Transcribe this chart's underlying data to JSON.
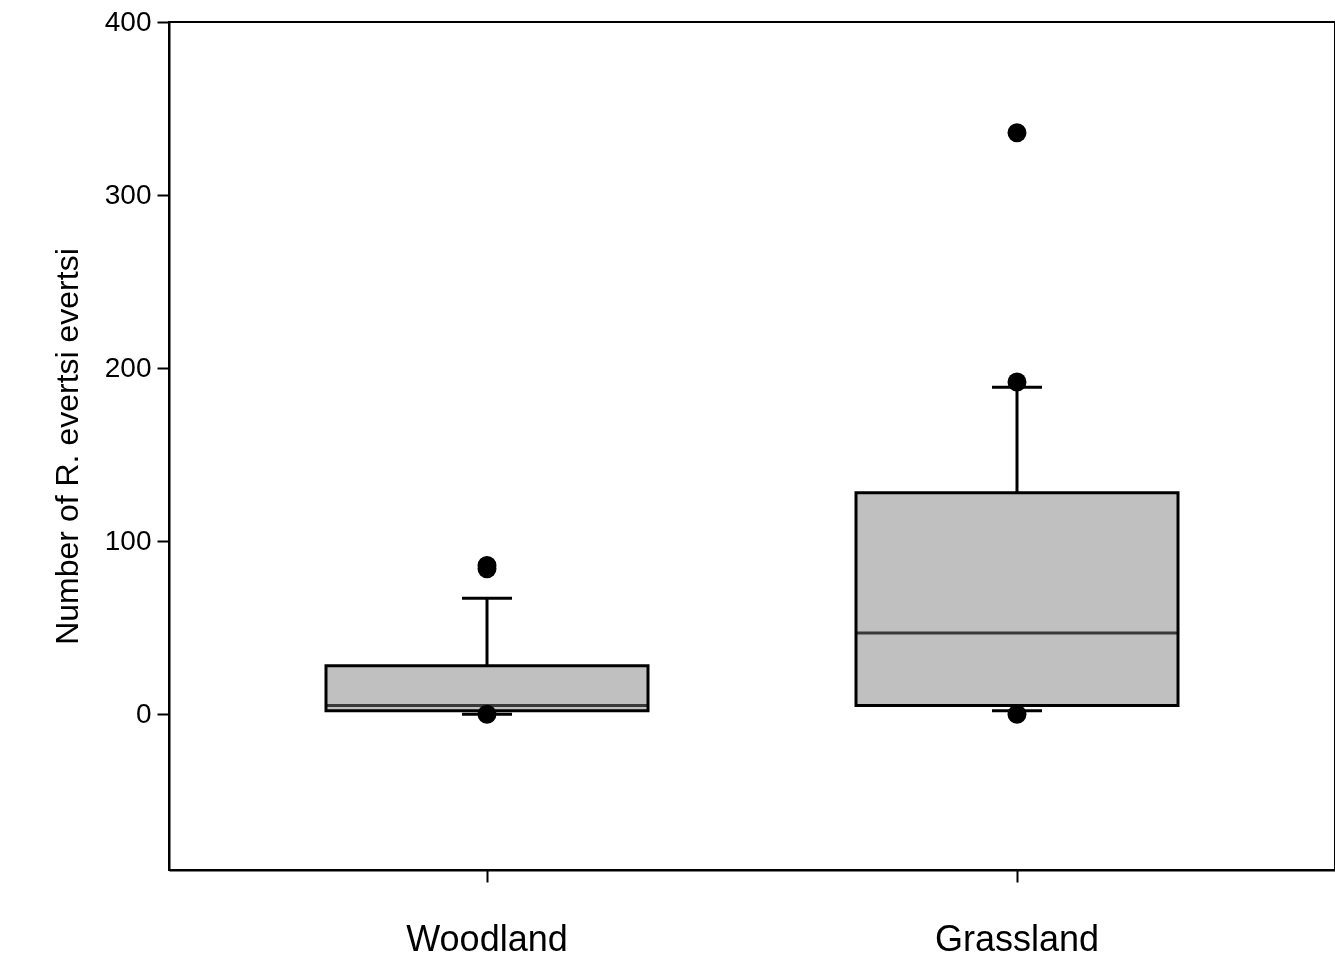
{
  "chart_data": {
    "type": "box",
    "ylabel": "Number of R. evertsi evertsi",
    "categories": [
      "Woodland",
      "Grassland"
    ],
    "series": [
      {
        "color": "#c0c0c0",
        "boxes": [
          {
            "low": 0,
            "q1": 2,
            "median": 5,
            "q3": 28,
            "high": 67,
            "outliers": [
              86,
              84,
              0
            ]
          },
          {
            "low": 2,
            "q1": 5,
            "median": 47,
            "q3": 128,
            "high": 189,
            "outliers": [
              336,
              192,
              0
            ]
          }
        ]
      }
    ],
    "ylim": [
      -90,
      400
    ],
    "yticks": [
      0,
      100,
      200,
      300,
      400
    ]
  }
}
